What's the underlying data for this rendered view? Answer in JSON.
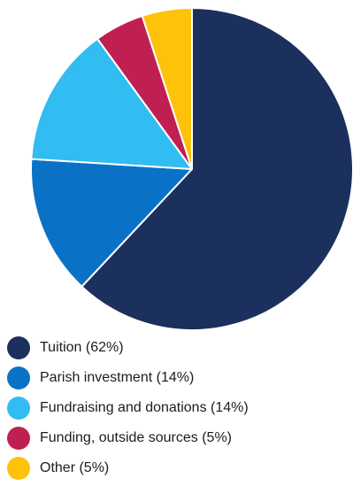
{
  "chart_data": {
    "type": "pie",
    "slices": [
      {
        "label": "Tuition (62%)",
        "value": 62,
        "color": "#1b305c"
      },
      {
        "label": "Parish investment (14%)",
        "value": 14,
        "color": "#0a72c6"
      },
      {
        "label": "Fundraising and donations (14%)",
        "value": 14,
        "color": "#31bcf2"
      },
      {
        "label": "Funding, outside sources (5%)",
        "value": 5,
        "color": "#c01f52"
      },
      {
        "label": "Other (5%)",
        "value": 5,
        "color": "#fdc20a"
      }
    ],
    "legend_position": "bottom-left",
    "start_angle": "top, clockwise"
  }
}
